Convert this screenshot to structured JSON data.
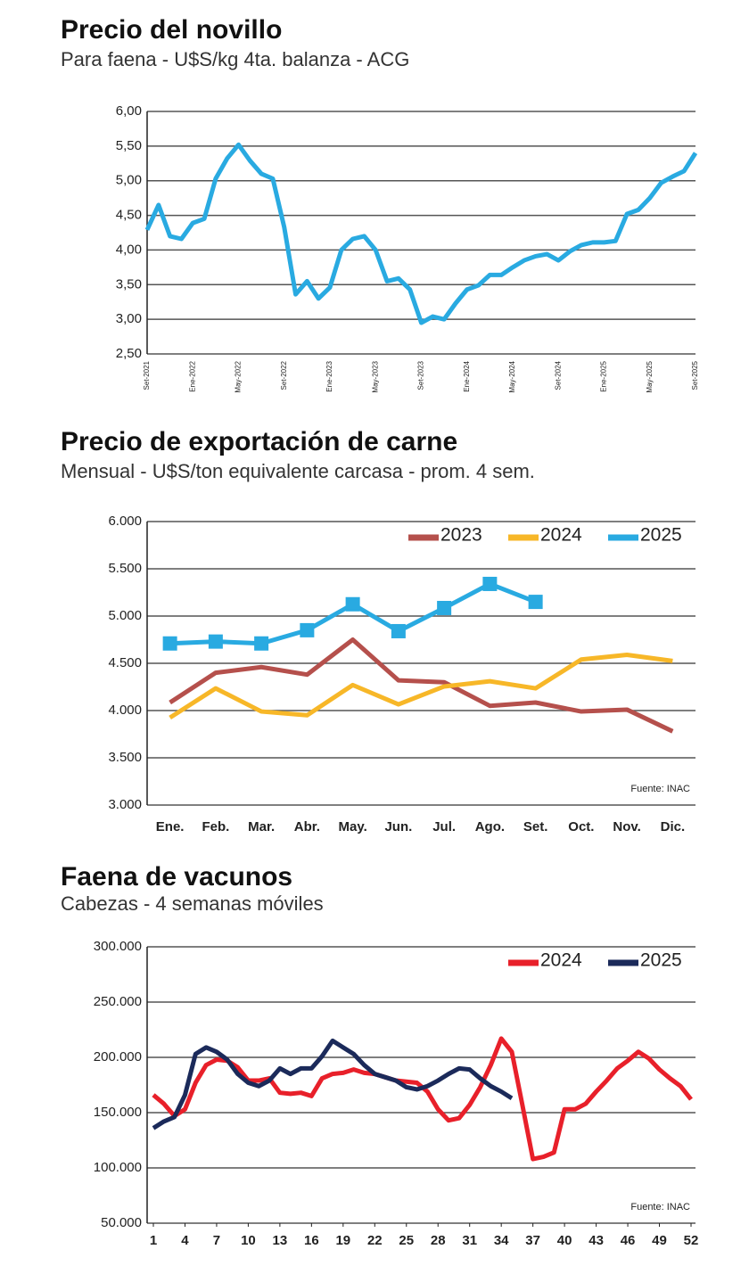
{
  "chart_data": [
    {
      "type": "line",
      "title": "Precio del novillo",
      "subtitle": "Para faena - U$S/kg 4ta. balanza - ACG",
      "categories": [
        "Set-2021",
        null,
        null,
        null,
        "Ene-2022",
        null,
        null,
        null,
        "May-2022",
        null,
        null,
        null,
        "Set-2022",
        null,
        null,
        null,
        "Ene-2023",
        null,
        null,
        null,
        "May-2023",
        null,
        null,
        null,
        "Set-2023",
        null,
        null,
        null,
        "Ene-2024",
        null,
        null,
        null,
        "May-2024",
        null,
        null,
        null,
        "Set-2024",
        null,
        null,
        null,
        "Ene-2025",
        null,
        null,
        null,
        "May-2025",
        null,
        null,
        null,
        "Set-2025"
      ],
      "series": [
        {
          "color": "#29aae1",
          "values": [
            4.29,
            4.65,
            4.2,
            4.16,
            4.39,
            4.45,
            5.03,
            5.32,
            5.52,
            5.29,
            5.1,
            5.03,
            4.33,
            3.36,
            3.55,
            3.3,
            3.46,
            4.0,
            4.16,
            4.2,
            4.0,
            3.55,
            3.59,
            3.43,
            2.95,
            3.04,
            3.0,
            3.23,
            3.43,
            3.49,
            3.64,
            3.64,
            3.75,
            3.85,
            3.91,
            3.94,
            3.85,
            3.98,
            4.07,
            4.11,
            4.11,
            4.13,
            4.52,
            4.58,
            4.75,
            4.97,
            5.06,
            5.14,
            5.4
          ]
        }
      ],
      "ylim": [
        2.5,
        6.0
      ],
      "yticks": [
        {
          "value": 2.5,
          "label": "2,50"
        },
        {
          "value": 3.0,
          "label": "3,00"
        },
        {
          "value": 3.5,
          "label": "3,50"
        },
        {
          "value": 4.0,
          "label": "4,00"
        },
        {
          "value": 4.5,
          "label": "4,50"
        },
        {
          "value": 5.0,
          "label": "5,00"
        },
        {
          "value": 5.5,
          "label": "5,50"
        },
        {
          "value": 6.0,
          "label": "6,00"
        }
      ],
      "grid": true
    },
    {
      "type": "line",
      "title": "Precio de exportación de carne",
      "subtitle": "Mensual - U$S/ton equivalente carcasa - prom. 4 sem.",
      "categories": [
        "Ene.",
        "Feb.",
        "Mar.",
        "Abr.",
        "May.",
        "Jun.",
        "Jul.",
        "Ago.",
        "Set.",
        "Oct.",
        "Nov.",
        "Dic."
      ],
      "series": [
        {
          "name": "2023",
          "color": "#b5504c",
          "values": [
            4085,
            4400,
            4460,
            4380,
            4750,
            4320,
            4300,
            4050,
            4085,
            3990,
            4010,
            3780
          ]
        },
        {
          "name": "2024",
          "color": "#f7b728",
          "values": [
            3925,
            4235,
            3990,
            3950,
            4270,
            4065,
            4255,
            4310,
            4235,
            4540,
            4590,
            4525
          ]
        },
        {
          "name": "2025",
          "color": "#29aae1",
          "marker": "square",
          "values": [
            4710,
            4730,
            4710,
            4850,
            5125,
            4840,
            5085,
            5340,
            5150,
            null,
            null,
            null
          ]
        }
      ],
      "ylim": [
        3000,
        6000
      ],
      "yticks": [
        {
          "value": 3000,
          "label": "3.000"
        },
        {
          "value": 3500,
          "label": "3.500"
        },
        {
          "value": 4000,
          "label": "4.000"
        },
        {
          "value": 4500,
          "label": "4.500"
        },
        {
          "value": 5000,
          "label": "5.000"
        },
        {
          "value": 5500,
          "label": "5.500"
        },
        {
          "value": 6000,
          "label": "6.000"
        }
      ],
      "grid": true,
      "legend": "top-right",
      "annotation": "Fuente: INAC"
    },
    {
      "type": "line",
      "title": "Faena de vacunos",
      "subtitle": "Cabezas - 4 semanas móviles",
      "x": [
        1,
        2,
        3,
        4,
        5,
        6,
        7,
        8,
        9,
        10,
        11,
        12,
        13,
        14,
        15,
        16,
        17,
        18,
        19,
        20,
        21,
        22,
        23,
        24,
        25,
        26,
        27,
        28,
        29,
        30,
        31,
        32,
        33,
        34,
        35,
        36,
        37,
        38,
        39,
        40,
        41,
        42,
        43,
        44,
        45,
        46,
        47,
        48,
        49,
        50,
        51,
        52
      ],
      "series": [
        {
          "name": "2024",
          "color": "#e8202a",
          "values": [
            166000,
            158000,
            147000,
            153000,
            177000,
            193000,
            198000,
            197000,
            191000,
            179000,
            179000,
            181000,
            168000,
            167000,
            168000,
            165000,
            181000,
            185000,
            186000,
            189000,
            186000,
            185000,
            182000,
            179000,
            178000,
            177000,
            169000,
            153000,
            143000,
            145000,
            157000,
            173000,
            193000,
            217000,
            205000,
            157000,
            108000,
            110000,
            114000,
            153000,
            153000,
            158000,
            169000,
            179000,
            190000,
            197000,
            205000,
            199000,
            189000,
            181000,
            174000,
            162000
          ]
        },
        {
          "name": "2025",
          "color": "#1b2a5a",
          "values": [
            136000,
            142000,
            146000,
            166000,
            203000,
            209000,
            205000,
            198000,
            185000,
            177000,
            174000,
            179000,
            190000,
            185000,
            190000,
            190000,
            201000,
            215000,
            209000,
            203000,
            193000,
            185000,
            182000,
            179000,
            173000,
            171000,
            174000,
            179000,
            185000,
            190000,
            189000,
            181000,
            174000,
            169000,
            163000,
            null,
            null,
            null,
            null,
            null,
            null,
            null,
            null,
            null,
            null,
            null,
            null,
            null,
            null,
            null,
            null,
            null
          ]
        }
      ],
      "xlim": [
        1,
        52
      ],
      "xticks": [
        1,
        4,
        7,
        10,
        13,
        16,
        19,
        22,
        25,
        28,
        31,
        34,
        37,
        40,
        43,
        46,
        49,
        52
      ],
      "ylim": [
        50000,
        300000
      ],
      "yticks": [
        {
          "value": 50000,
          "label": "50.000"
        },
        {
          "value": 100000,
          "label": "100.000"
        },
        {
          "value": 150000,
          "label": "150.000"
        },
        {
          "value": 200000,
          "label": "200.000"
        },
        {
          "value": 250000,
          "label": "250.000"
        },
        {
          "value": 300000,
          "label": "300.000"
        }
      ],
      "grid": true,
      "legend": "top-right",
      "annotation": "Fuente: INAC"
    }
  ]
}
